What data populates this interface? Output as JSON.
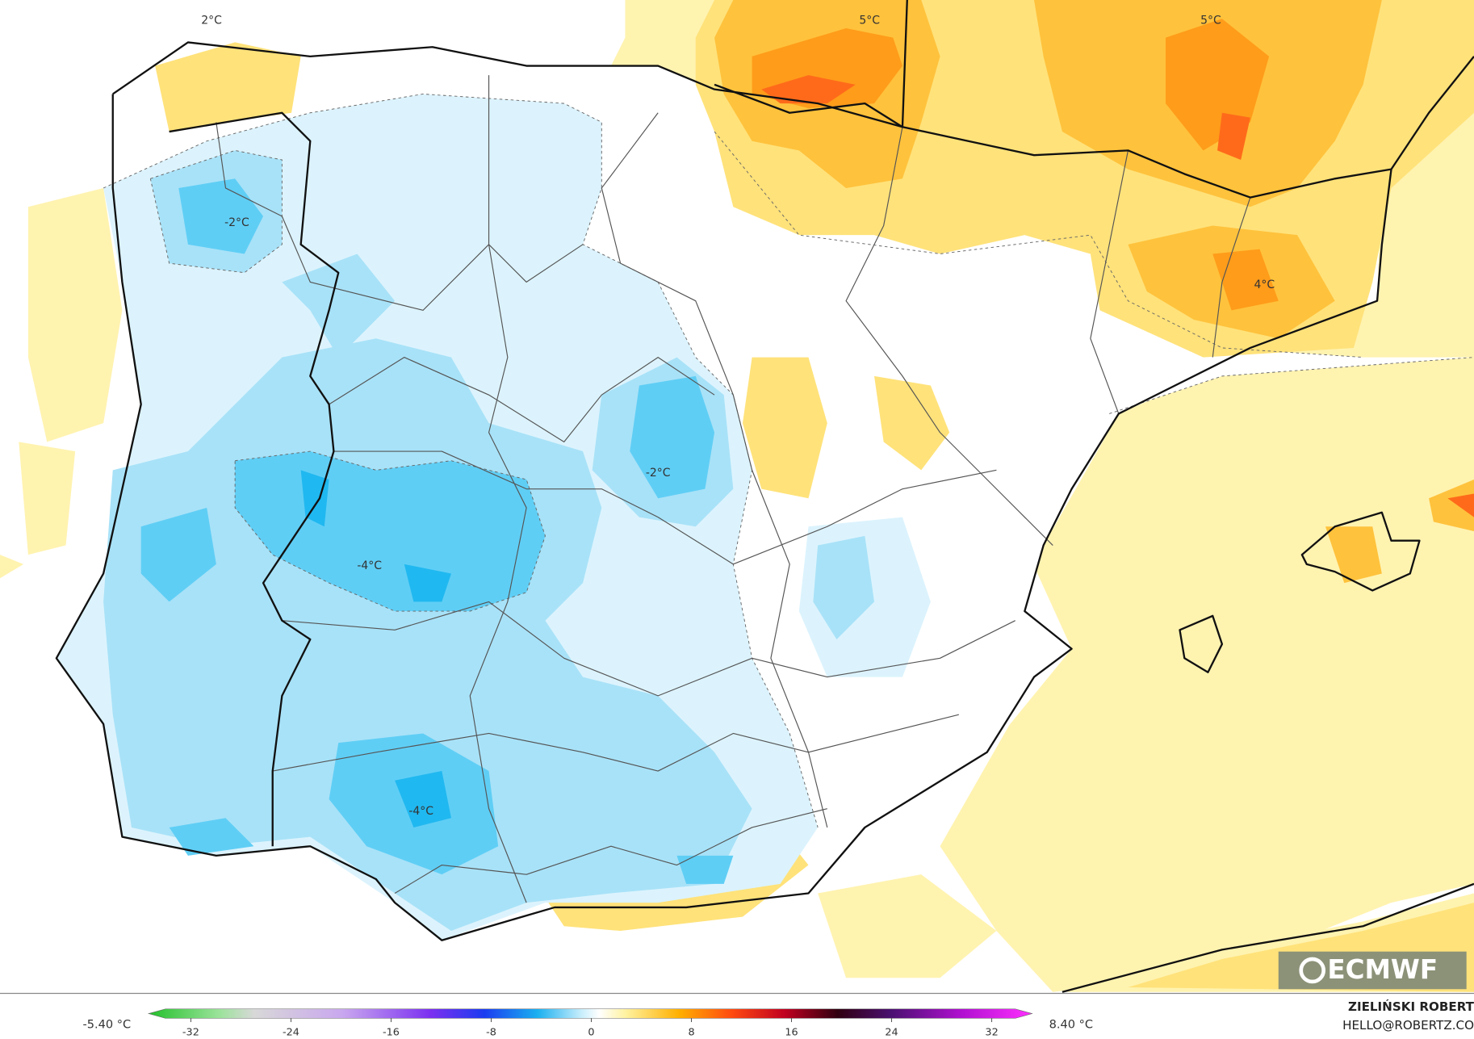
{
  "map": {
    "contour_labels": [
      "2°C",
      "5°C",
      "5°C",
      "-2°C",
      "4°C",
      "-2°C",
      "-4°C",
      "-4°C"
    ]
  },
  "colorbar": {
    "ticks": [
      -32,
      -24,
      -16,
      -8,
      0,
      8,
      16,
      24,
      32
    ],
    "min_label": "-5.40 °C",
    "max_label": "8.40 °C"
  },
  "logo": "ECMWF",
  "credit": {
    "name": "ZIELIŃSKI ROBERT",
    "email": "HELLO@ROBERTZ.CO"
  }
}
